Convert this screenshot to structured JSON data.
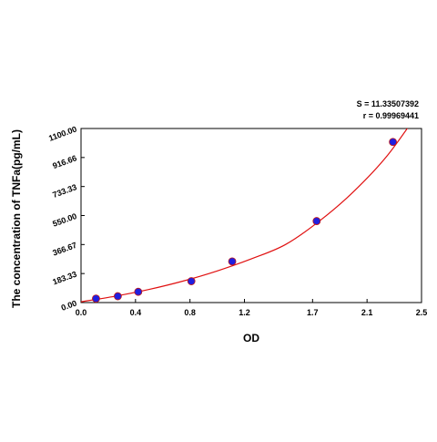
{
  "chart_data": {
    "type": "scatter",
    "title": "",
    "xlabel": "OD",
    "ylabel": "The concentration of TNFa(pg/mL)",
    "xlim": [
      0.0,
      2.5
    ],
    "ylim": [
      0.0,
      1100.0
    ],
    "x_ticks": [
      0.0,
      0.4,
      0.8,
      1.2,
      1.7,
      2.1,
      2.5
    ],
    "x_tick_labels": [
      "0.0",
      "0.4",
      "0.8",
      "1.2",
      "1.7",
      "2.1",
      "2.5"
    ],
    "y_ticks": [
      0.0,
      183.33,
      366.67,
      550.0,
      733.33,
      916.66,
      1100.0
    ],
    "y_tick_labels": [
      "0.00",
      "183.33",
      "366.67",
      "550.00",
      "733.33",
      "916.66",
      "1100.00"
    ],
    "grid": false,
    "legend": "none",
    "annotations": [
      "S = 11.33507392",
      "r = 0.99969441"
    ],
    "series": [
      {
        "kind": "points",
        "color": "#1f1fe0",
        "x": [
          0.11,
          0.27,
          0.42,
          0.81,
          1.11,
          1.73,
          2.29
        ],
        "y": [
          25,
          40,
          68,
          135,
          260,
          515,
          1015
        ]
      },
      {
        "kind": "fit-curve",
        "color": "#e01010",
        "x": [
          0.0,
          0.25,
          0.5,
          0.75,
          1.0,
          1.25,
          1.5,
          1.75,
          2.0,
          2.25,
          2.5
        ],
        "y": [
          5,
          40,
          83,
          136,
          200,
          276,
          366,
          515,
          700,
          930,
          1230
        ]
      }
    ]
  }
}
